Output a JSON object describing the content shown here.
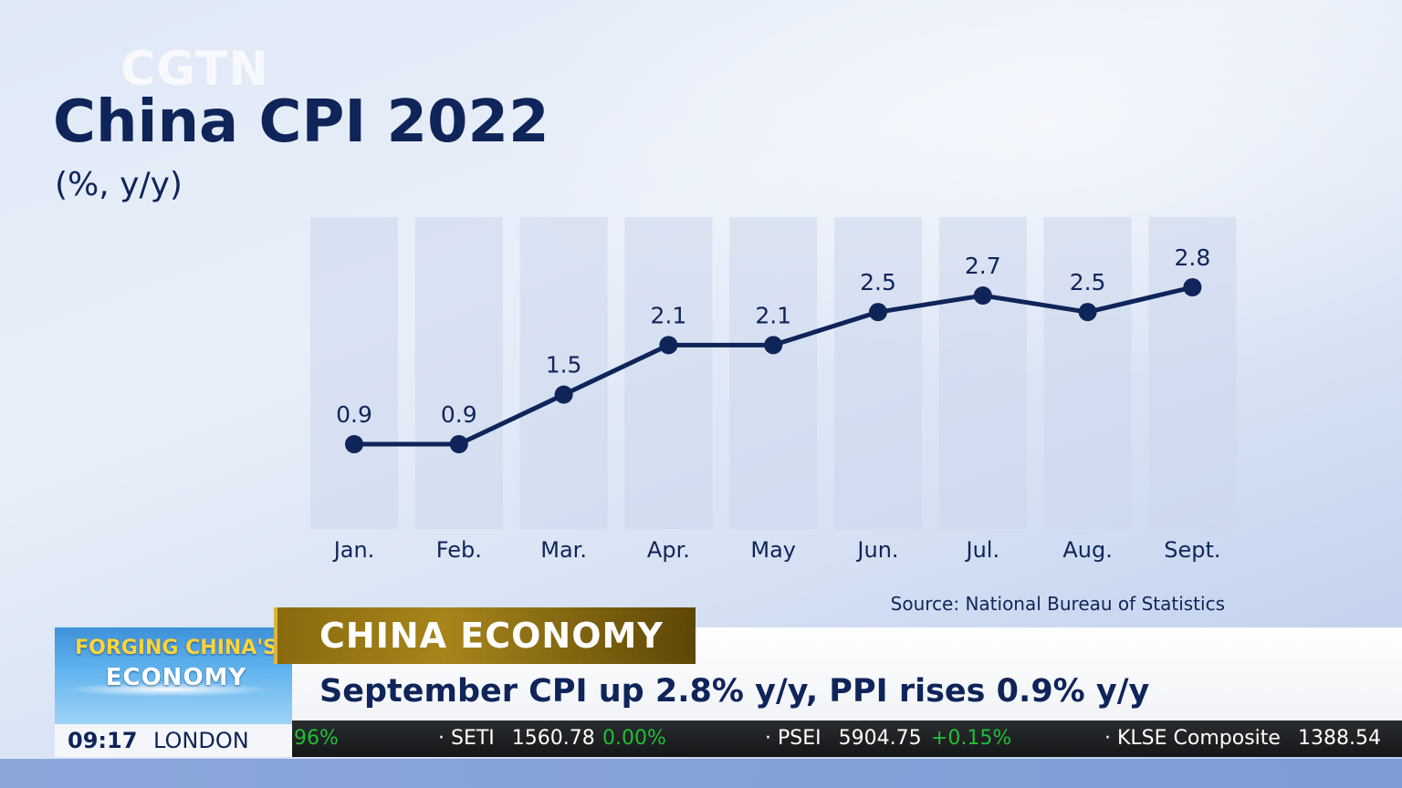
{
  "watermark": "CGTN",
  "chart_data": {
    "type": "line",
    "title": "China CPI 2022",
    "subtitle": "(%, y/y)",
    "categories": [
      "Jan.",
      "Feb.",
      "Mar.",
      "Apr.",
      "May",
      "Jun.",
      "Jul.",
      "Aug.",
      "Sept."
    ],
    "values": [
      0.9,
      0.9,
      1.5,
      2.1,
      2.1,
      2.5,
      2.7,
      2.5,
      2.8
    ],
    "data_labels": [
      "0.9",
      "0.9",
      "1.5",
      "2.1",
      "2.1",
      "2.5",
      "2.7",
      "2.5",
      "2.8"
    ],
    "ylim": [
      0.9,
      2.8
    ],
    "grid": false,
    "line_color": "#0f2459",
    "column_band_color": "#ccd7ec",
    "source": "Source: National Bureau of Statistics"
  },
  "lower_third": {
    "program_line1": "FORGING CHINA'S",
    "program_line2": "ECONOMY",
    "time": "09:17",
    "city": "LONDON",
    "section": "CHINA ECONOMY",
    "headline": "September CPI up 2.8% y/y, PPI rises 0.9% y/y",
    "accent_color": "#a7851b"
  },
  "ticker": {
    "lead_change": "96%",
    "items": [
      {
        "name": "SETI",
        "value": "1560.78",
        "change": "0.00%"
      },
      {
        "name": "PSEI",
        "value": "5904.75",
        "change": "+0.15%"
      },
      {
        "name": "KLSE Composite",
        "value": "1388.54",
        "change": ""
      }
    ],
    "positive_color": "#1fbf36"
  }
}
